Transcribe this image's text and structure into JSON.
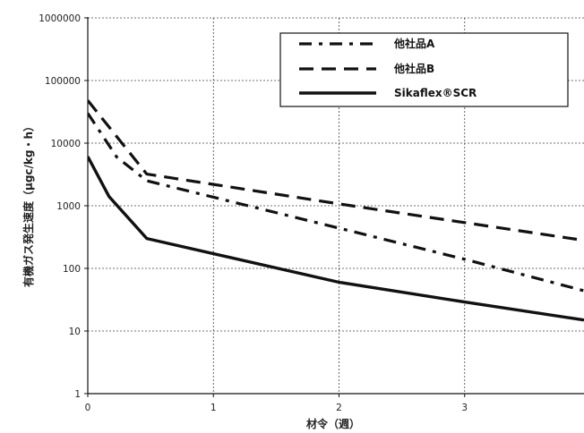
{
  "chart_data": {
    "type": "line",
    "title": "",
    "xlabel": "材令（週）",
    "ylabel": "有機ガス発生速度（μgc/kg・h）",
    "xlim": [
      0,
      3.95
    ],
    "ylim": [
      1,
      1000000
    ],
    "yscale": "log",
    "xticks": [
      0,
      1,
      2,
      3
    ],
    "xtick_labels": [
      "0",
      "1",
      "2",
      "3"
    ],
    "yticks": [
      1,
      10,
      100,
      1000,
      10000,
      100000,
      1000000
    ],
    "ytick_labels": [
      "1",
      "10",
      "100",
      "1000",
      "10000",
      "100000",
      "1000000"
    ],
    "grid": true,
    "legend": "top-right",
    "series": [
      {
        "name": "他社品A",
        "color": "#111111",
        "x": [
          0,
          0.23,
          0.47,
          2,
          3,
          3.95
        ],
        "y": [
          30000,
          6000,
          2500,
          440,
          140,
          44
        ]
      },
      {
        "name": "他社品B",
        "color": "#111111",
        "x": [
          0,
          0.47,
          2,
          3.95
        ],
        "y": [
          48000,
          3200,
          1070,
          280
        ]
      },
      {
        "name": "Sikaflex®SCR",
        "color": "#111111",
        "x": [
          0,
          0.17,
          0.47,
          2,
          3,
          3.95
        ],
        "y": [
          6100,
          1400,
          300,
          60,
          29,
          15
        ]
      }
    ]
  }
}
